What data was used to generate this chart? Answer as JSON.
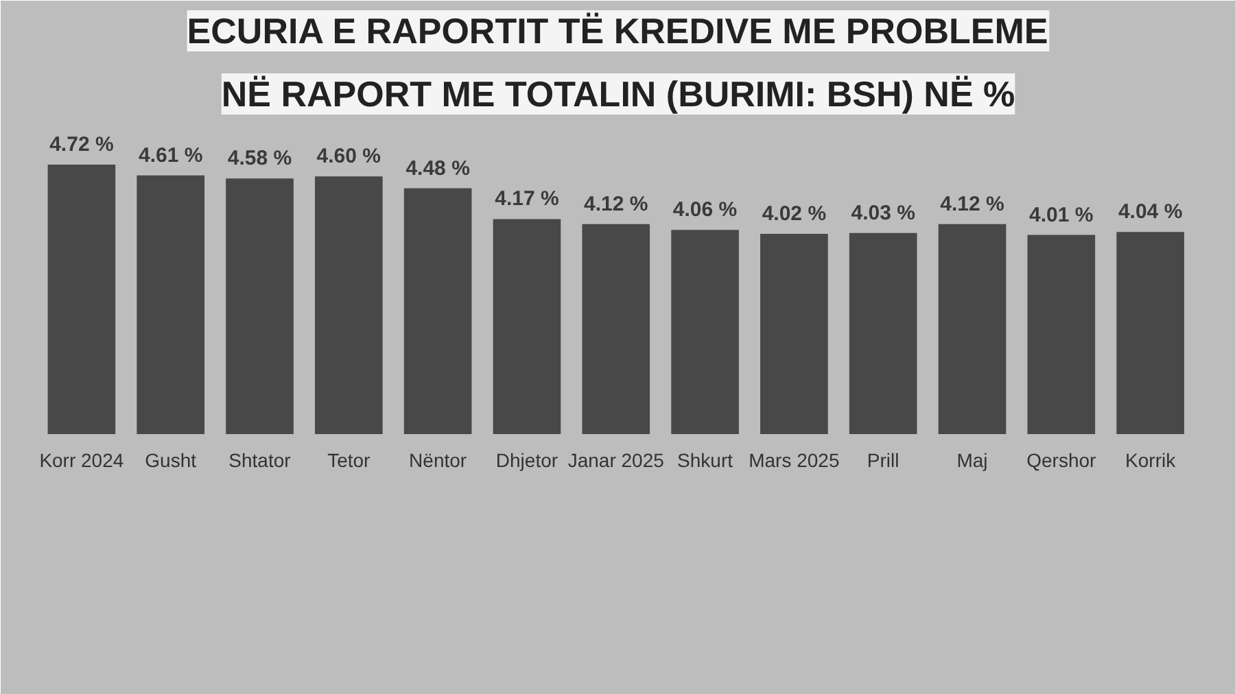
{
  "chart_data": {
    "type": "bar",
    "title": "ECURIA E RAPORTIT TË KREDIVE ME PROBLEME",
    "subtitle": "NË RAPORT ME TOTALIN (BURIMI: BSH) NË %",
    "categories": [
      "Korr 2024",
      "Gusht",
      "Shtator",
      "Tetor",
      "Nëntor",
      "Dhjetor",
      "Janar 2025",
      "Shkurt",
      "Mars 2025",
      "Prill",
      "Maj",
      "Qershor",
      "Korrik"
    ],
    "values": [
      4.72,
      4.61,
      4.58,
      4.6,
      4.48,
      4.17,
      4.12,
      4.06,
      4.02,
      4.03,
      4.12,
      4.01,
      4.04
    ],
    "value_labels": [
      "4.72 %",
      "4.61 %",
      "4.58 %",
      "4.60 %",
      "4.48 %",
      "4.17 %",
      "4.12 %",
      "4.06 %",
      "4.02 %",
      "4.03 %",
      "4.12 %",
      "4.01 %",
      "4.04 %"
    ],
    "color": "#484848",
    "ylim": [
      2.0,
      5.1
    ],
    "tick_labels": "x",
    "grid": false
  }
}
